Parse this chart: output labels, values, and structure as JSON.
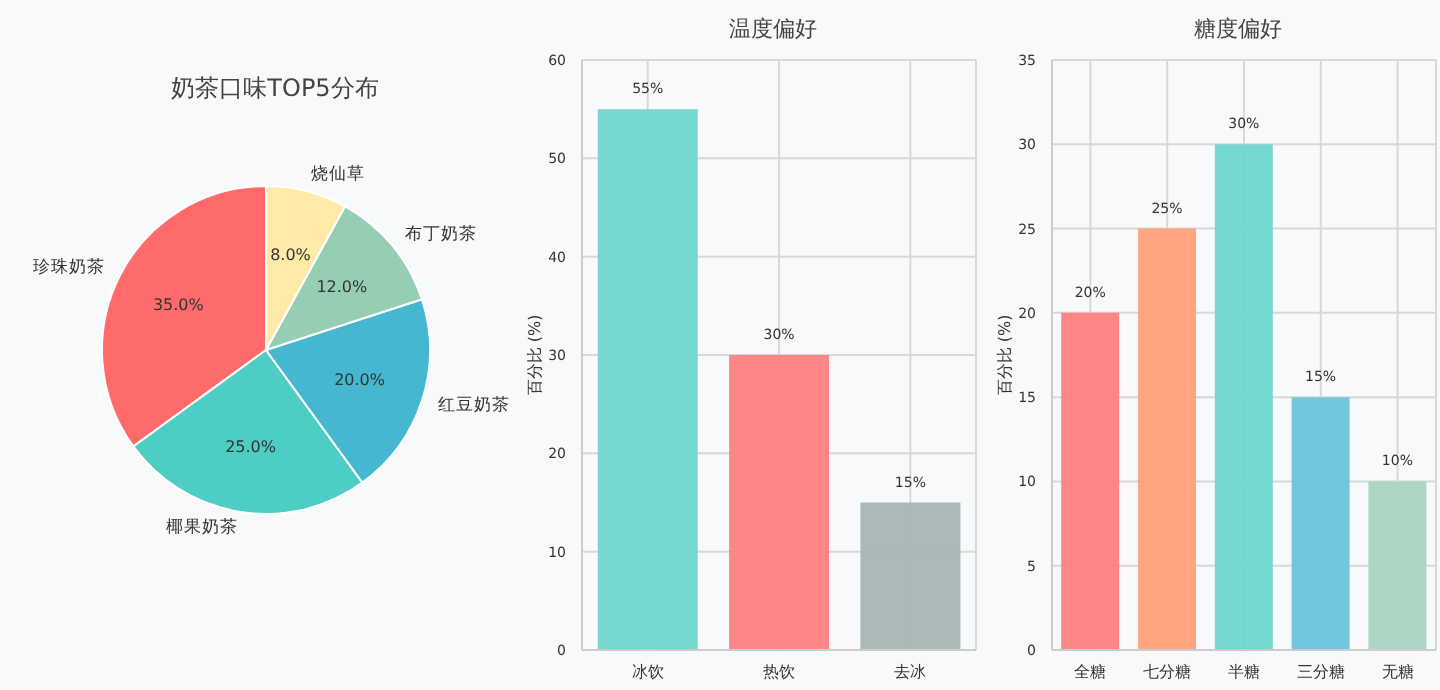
{
  "chart_data": [
    {
      "type": "pie",
      "title": "奶茶口味TOP5分布",
      "categories": [
        "珍珠奶茶",
        "椰果奶茶",
        "红豆奶茶",
        "布丁奶茶",
        "烧仙草"
      ],
      "values": [
        35,
        25,
        20,
        12,
        8
      ],
      "colors": [
        "#ff6b6b",
        "#4ecdc4",
        "#45b7d1",
        "#96ceb4",
        "#ffeaa7"
      ],
      "value_labels": [
        "35.0%",
        "25.0%",
        "20.0%",
        "12.0%",
        "8.0%"
      ]
    },
    {
      "type": "bar",
      "title": "温度偏好",
      "ylabel": "百分比 (%)",
      "categories": [
        "冰饮",
        "热饮",
        "去冰"
      ],
      "values": [
        55,
        30,
        15
      ],
      "colors": [
        "#6fd6cc",
        "#ff8080",
        "#a7b5b4"
      ],
      "value_labels": [
        "55%",
        "30%",
        "15%"
      ],
      "ylim": [
        0,
        60
      ],
      "yticks": [
        0,
        10,
        20,
        30,
        40,
        50,
        60
      ],
      "grid": true
    },
    {
      "type": "bar",
      "title": "糖度偏好",
      "ylabel": "百分比 (%)",
      "categories": [
        "全糖",
        "七分糖",
        "半糖",
        "三分糖",
        "无糖"
      ],
      "values": [
        20,
        25,
        30,
        15,
        10
      ],
      "colors": [
        "#ff8080",
        "#ffa07a",
        "#6fd6cc",
        "#6ac4da",
        "#a8d5c0"
      ],
      "value_labels": [
        "20%",
        "25%",
        "30%",
        "15%",
        "10%"
      ],
      "ylim": [
        0,
        35
      ],
      "yticks": [
        0,
        5,
        10,
        15,
        20,
        25,
        30,
        35
      ],
      "grid": true
    }
  ]
}
